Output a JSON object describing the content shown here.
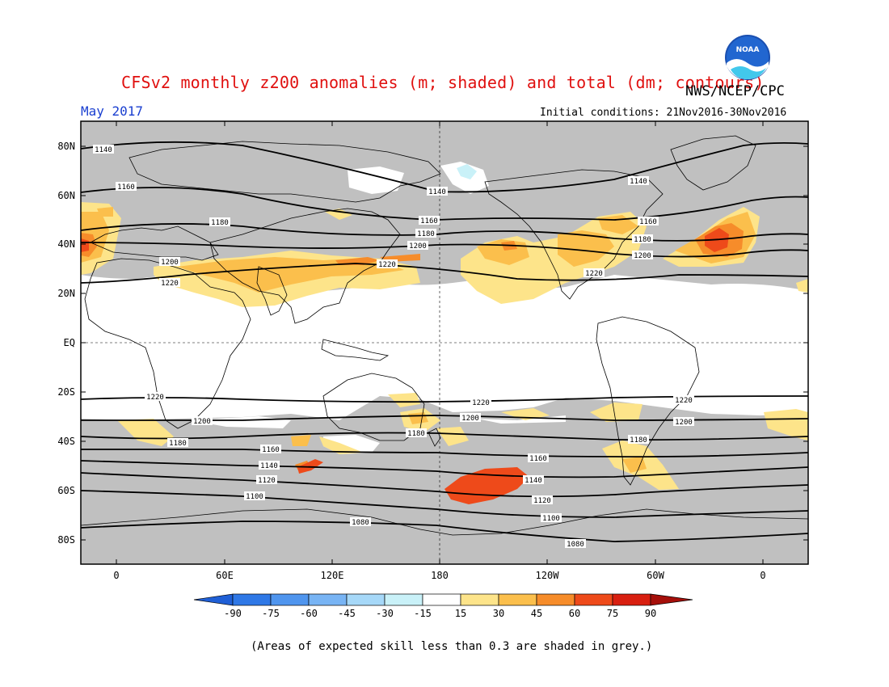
{
  "header": {
    "title": "CFSv2 monthly z200 anomalies (m; shaded) and total (dm; contours)",
    "agency": "NWS/NCEP/CPC",
    "month": "May 2017",
    "initial_conditions": "Initial conditions: 21Nov2016-30Nov2016",
    "logo_text": "NOAA"
  },
  "map": {
    "lon_ticks": [
      "0",
      "60E",
      "120E",
      "180",
      "120W",
      "60W",
      "0"
    ],
    "lat_ticks": [
      "80N",
      "60N",
      "40N",
      "20N",
      "EQ",
      "20S",
      "40S",
      "60S",
      "80S"
    ],
    "colors": {
      "grey": "#c0c0c0",
      "y15": "#fde48a",
      "y30": "#fbbf4c",
      "o45": "#f68c2a",
      "r60": "#ee4a1a",
      "r75": "#d81f10",
      "r90": "#a50f0a"
    },
    "contour_labels": [
      {
        "text": "1140"
      },
      {
        "text": "1160"
      },
      {
        "text": "1180"
      },
      {
        "text": "1200"
      },
      {
        "text": "1220"
      },
      {
        "text": "1140"
      },
      {
        "text": "1160"
      },
      {
        "text": "1180"
      },
      {
        "text": "1200"
      },
      {
        "text": "1220"
      },
      {
        "text": "1140"
      },
      {
        "text": "1160"
      },
      {
        "text": "1180"
      },
      {
        "text": "1200"
      },
      {
        "text": "1220"
      },
      {
        "text": "1220"
      },
      {
        "text": "1200"
      },
      {
        "text": "1180"
      },
      {
        "text": "1160"
      },
      {
        "text": "1140"
      },
      {
        "text": "1120"
      },
      {
        "text": "1100"
      },
      {
        "text": "1080"
      },
      {
        "text": "1220"
      },
      {
        "text": "1200"
      },
      {
        "text": "1180"
      },
      {
        "text": "1160"
      },
      {
        "text": "1140"
      },
      {
        "text": "1120"
      },
      {
        "text": "1100"
      },
      {
        "text": "1080"
      },
      {
        "text": "1220"
      },
      {
        "text": "1200"
      },
      {
        "text": "1180"
      }
    ]
  },
  "colorbar": {
    "values": [
      "-90",
      "-75",
      "-60",
      "-45",
      "-30",
      "-15",
      "15",
      "30",
      "45",
      "60",
      "75",
      "90"
    ],
    "colors": [
      "#1f5fd6",
      "#2f78e6",
      "#4f95ee",
      "#78b4f4",
      "#a6d8f8",
      "#c9f1f8",
      "#ffffff",
      "#fde48a",
      "#fbbf4c",
      "#f68c2a",
      "#ee4a1a",
      "#d81f10",
      "#a50f0a"
    ]
  },
  "footnote": "(Areas of expected skill less than 0.3 are shaded in grey.)"
}
